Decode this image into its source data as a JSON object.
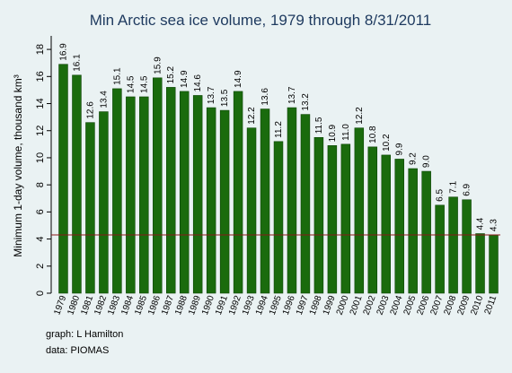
{
  "chart_data": {
    "type": "bar",
    "title": "Min Arctic sea ice volume, 1979 through 8/31/2011",
    "ylabel": "Minimum 1-day volume, thousand km³",
    "xlabel": "",
    "ylim": [
      0,
      19
    ],
    "yticks": [
      0,
      2,
      4,
      6,
      8,
      10,
      12,
      14,
      16,
      18
    ],
    "categories": [
      "1979",
      "1980",
      "1981",
      "1982",
      "1983",
      "1984",
      "1985",
      "1986",
      "1987",
      "1988",
      "1989",
      "1990",
      "1991",
      "1992",
      "1993",
      "1994",
      "1995",
      "1996",
      "1997",
      "1998",
      "1999",
      "2000",
      "2001",
      "2002",
      "2003",
      "2004",
      "2005",
      "2006",
      "2007",
      "2008",
      "2009",
      "2010",
      "2011"
    ],
    "values": [
      16.9,
      16.1,
      12.6,
      13.4,
      15.1,
      14.5,
      14.5,
      15.9,
      15.2,
      14.9,
      14.6,
      13.7,
      13.5,
      14.9,
      12.2,
      13.6,
      11.2,
      13.7,
      13.2,
      11.5,
      10.9,
      11.0,
      12.2,
      10.8,
      10.2,
      9.9,
      9.2,
      9.0,
      6.5,
      7.1,
      6.9,
      4.4,
      4.3
    ],
    "labels": [
      "16.9",
      "16.1",
      "12.6",
      "13.4",
      "15.1",
      "14.5",
      "14.5",
      "15.9",
      "15.2",
      "14.9",
      "14.6",
      "13.7",
      "13.5",
      "14.9",
      "12.2",
      "13.6",
      "11.2",
      "13.7",
      "13.2",
      "11.5",
      "10.9",
      "11.0",
      "12.2",
      "10.8",
      "10.2",
      "9.9",
      "9.2",
      "9.0",
      "6.5",
      "7.1",
      "6.9",
      "4.4",
      "4.3"
    ],
    "reference_line": 4.3,
    "grid": false,
    "legend": "none"
  },
  "credits": {
    "graph": "graph:  L Hamilton",
    "data": "data:  PIOMAS"
  },
  "colors": {
    "background": "#eaf2f3",
    "bar": "#1a6b0d",
    "bar_edge": "#0d4406",
    "reference_line": "#8b1a1a",
    "title": "#1e3a5f"
  }
}
